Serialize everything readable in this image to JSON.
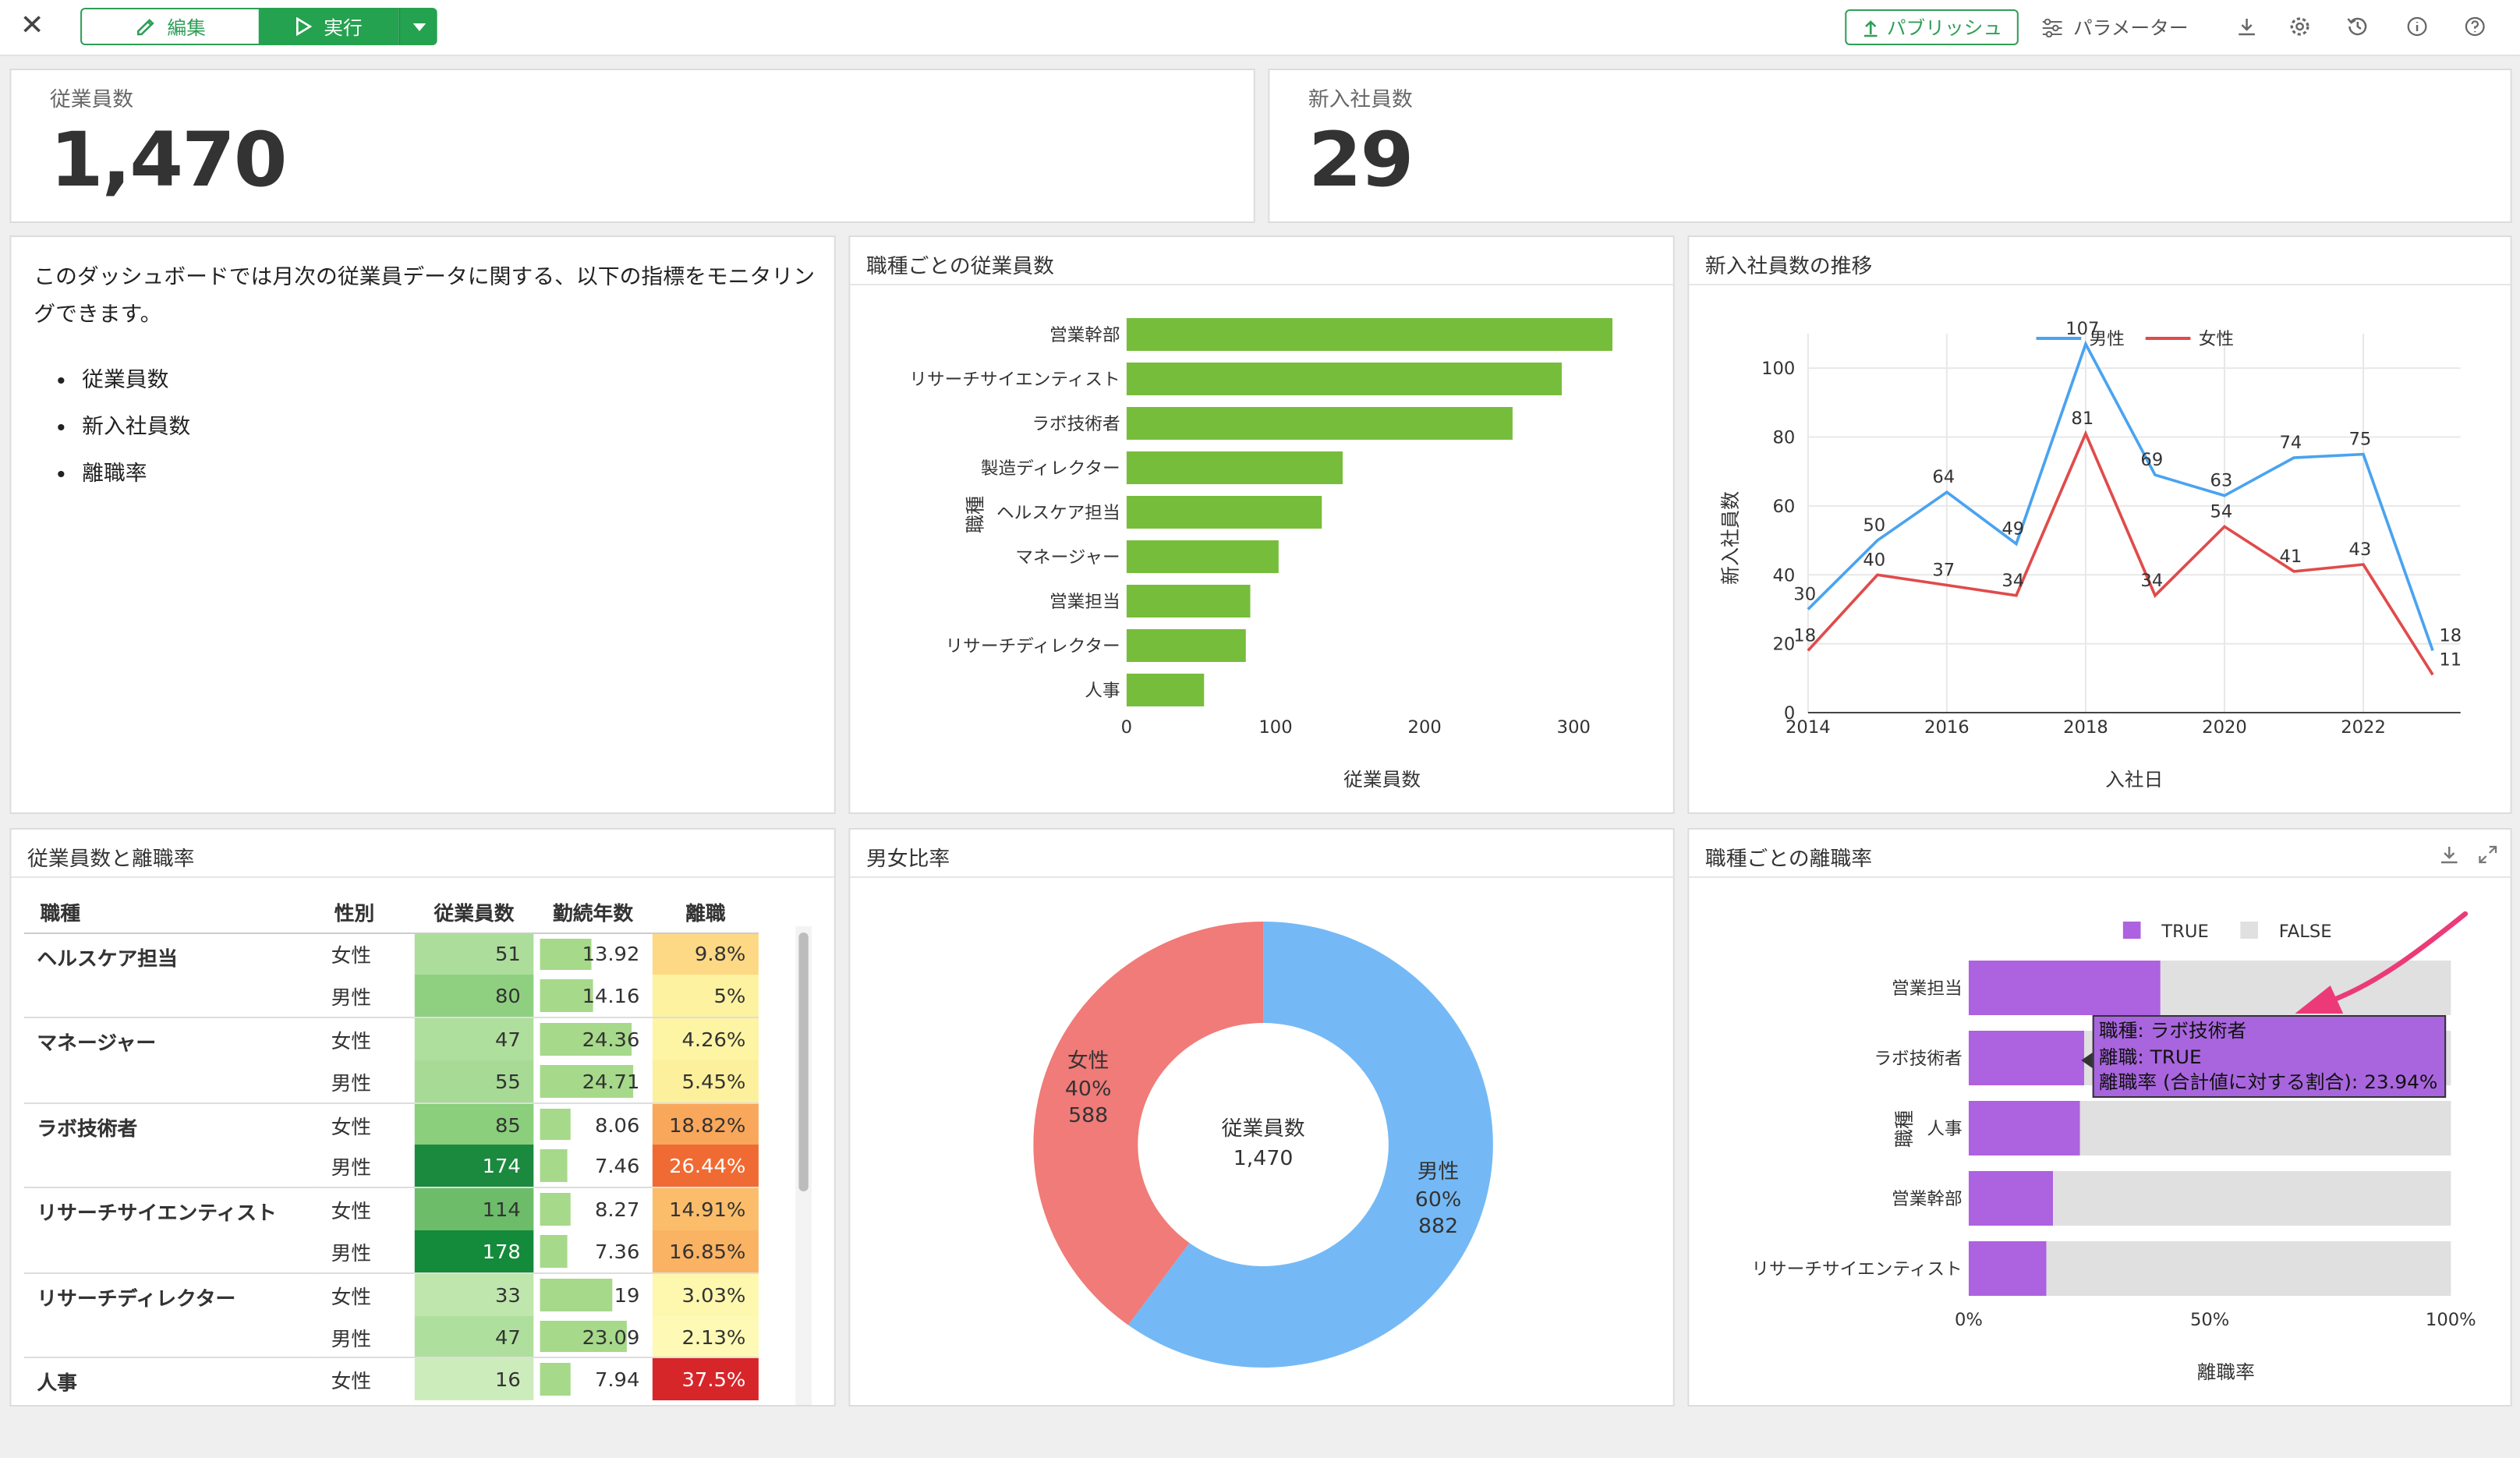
{
  "toolbar": {
    "edit_label": "編集",
    "run_label": "実行",
    "publish_label": "パブリッシュ",
    "parameter_label": "パラメーター"
  },
  "kpi": {
    "employees": {
      "label": "従業員数",
      "value": "1,470"
    },
    "new_hires": {
      "label": "新入社員数",
      "value": "29"
    }
  },
  "description": {
    "text": "このダッシュボードでは月次の従業員データに関する、以下の指標をモニタリングできます。",
    "items": [
      "従業員数",
      "新入社員数",
      "離職率"
    ]
  },
  "charts": {
    "by_role": {
      "title": "職種ごとの従業員数",
      "chart_data": {
        "type": "bar",
        "orientation": "horizontal",
        "categories": [
          "営業幹部",
          "リサーチサイエンティスト",
          "ラボ技術者",
          "製造ディレクター",
          "ヘルスケア担当",
          "マネージャー",
          "営業担当",
          "リサーチディレクター",
          "人事"
        ],
        "values": [
          326,
          292,
          259,
          145,
          131,
          102,
          83,
          80,
          52
        ],
        "xlabel": "従業員数",
        "ylabel": "職種",
        "xlim": [
          0,
          330
        ],
        "xticks": [
          "0",
          "100",
          "200",
          "300"
        ],
        "color": "#77bd3c"
      }
    },
    "new_hires_trend": {
      "title": "新入社員数の推移",
      "chart_data": {
        "type": "line",
        "x": [
          2014,
          2015,
          2016,
          2017,
          2018,
          2019,
          2020,
          2021,
          2022,
          2023
        ],
        "series": [
          {
            "name": "男性",
            "color": "#4aa3f0",
            "values": [
              30,
              50,
              64,
              49,
              107,
              69,
              63,
              74,
              75,
              18
            ]
          },
          {
            "name": "女性",
            "color": "#e04b4b",
            "values": [
              18,
              40,
              37,
              34,
              81,
              34,
              54,
              41,
              43,
              11
            ]
          }
        ],
        "xlabel": "入社日",
        "ylabel": "新入社員数",
        "xticks": [
          "2014",
          "2016",
          "2018",
          "2020",
          "2022"
        ],
        "yticks": [
          "0",
          "20",
          "40",
          "60",
          "80",
          "100"
        ],
        "ylim": [
          0,
          110
        ],
        "legend": "top"
      }
    },
    "gender": {
      "title": "男女比率",
      "center_label": "従業員数",
      "center_value": "1,470",
      "chart_data": {
        "type": "pie",
        "donut": true,
        "labels": [
          "男性",
          "女性"
        ],
        "values": [
          882,
          588
        ],
        "percents": [
          "60%",
          "40%"
        ],
        "colors": [
          "#74b9f5",
          "#f07b78"
        ]
      }
    },
    "attrition_by_role": {
      "title": "職種ごとの離職率",
      "chart_data": {
        "type": "bar",
        "orientation": "horizontal",
        "stacked": "percent",
        "categories": [
          "営業担当",
          "ラボ技術者",
          "人事",
          "営業幹部",
          "リサーチサイエンティスト"
        ],
        "series": [
          {
            "name": "TRUE",
            "color": "#ad62e0",
            "values": [
              39.76,
              23.94,
              23.08,
              17.48,
              16.1
            ]
          },
          {
            "name": "FALSE",
            "color": "#e0e0e0",
            "values": [
              60.24,
              76.06,
              76.92,
              82.52,
              83.9
            ]
          }
        ],
        "xlabel": "離職率",
        "ylabel": "職種",
        "xticks": [
          "0%",
          "50%",
          "100%"
        ],
        "legend": "top"
      },
      "tooltip": {
        "line1": "職種: ラボ技術者",
        "line2": "離職: TRUE",
        "line3": "離職率 (合計値に対する割合): 23.94%"
      }
    }
  },
  "table": {
    "title": "従業員数と離職率",
    "headers": [
      "職種",
      "性別",
      "従業員数",
      "勤続年数",
      "離職"
    ],
    "groups": [
      {
        "role": "ヘルスケア担当",
        "rows": [
          {
            "sex": "女性",
            "count": "51",
            "count_color": "#acdd9b",
            "years": "13.92",
            "years_frac": 0.56,
            "rate": "9.8%",
            "rate_color": "#fdd985"
          },
          {
            "sex": "男性",
            "count": "80",
            "count_color": "#8fd080",
            "years": "14.16",
            "years_frac": 0.57,
            "rate": "5%",
            "rate_color": "#fdf2a0"
          }
        ]
      },
      {
        "role": "マネージャー",
        "rows": [
          {
            "sex": "女性",
            "count": "47",
            "count_color": "#afdf9d",
            "years": "24.36",
            "years_frac": 0.98,
            "rate": "4.26%",
            "rate_color": "#fdf4a4"
          },
          {
            "sex": "男性",
            "count": "55",
            "count_color": "#a6da95",
            "years": "24.71",
            "years_frac": 1.0,
            "rate": "5.45%",
            "rate_color": "#fdf09c"
          }
        ]
      },
      {
        "role": "ラボ技術者",
        "rows": [
          {
            "sex": "女性",
            "count": "85",
            "count_color": "#8bce7c",
            "years": "8.06",
            "years_frac": 0.32,
            "rate": "18.82%",
            "rate_color": "#f9a75a"
          },
          {
            "sex": "男性",
            "count": "174",
            "count_color": "#1b8a3e",
            "years": "7.46",
            "years_frac": 0.3,
            "rate": "26.44%",
            "rate_color": "#ef6b33"
          }
        ]
      },
      {
        "role": "リサーチサイエンティスト",
        "rows": [
          {
            "sex": "女性",
            "count": "114",
            "count_color": "#6cbc6a",
            "years": "8.27",
            "years_frac": 0.33,
            "rate": "14.91%",
            "rate_color": "#fbbd6a"
          },
          {
            "sex": "男性",
            "count": "178",
            "count_color": "#148a3b",
            "years": "7.36",
            "years_frac": 0.3,
            "rate": "16.85%",
            "rate_color": "#fab263"
          }
        ]
      },
      {
        "role": "リサーチディレクター",
        "rows": [
          {
            "sex": "女性",
            "count": "33",
            "count_color": "#bfe6ad",
            "years": "19",
            "years_frac": 0.77,
            "rate": "3.03%",
            "rate_color": "#fef7ae"
          },
          {
            "sex": "男性",
            "count": "47",
            "count_color": "#afdf9d",
            "years": "23.09",
            "years_frac": 0.93,
            "rate": "2.13%",
            "rate_color": "#fef9b4"
          }
        ]
      },
      {
        "role": "人事",
        "rows": [
          {
            "sex": "女性",
            "count": "16",
            "count_color": "#cdecbc",
            "years": "7.94",
            "years_frac": 0.32,
            "rate": "37.5%",
            "rate_color": "#d7262a"
          }
        ]
      }
    ]
  }
}
